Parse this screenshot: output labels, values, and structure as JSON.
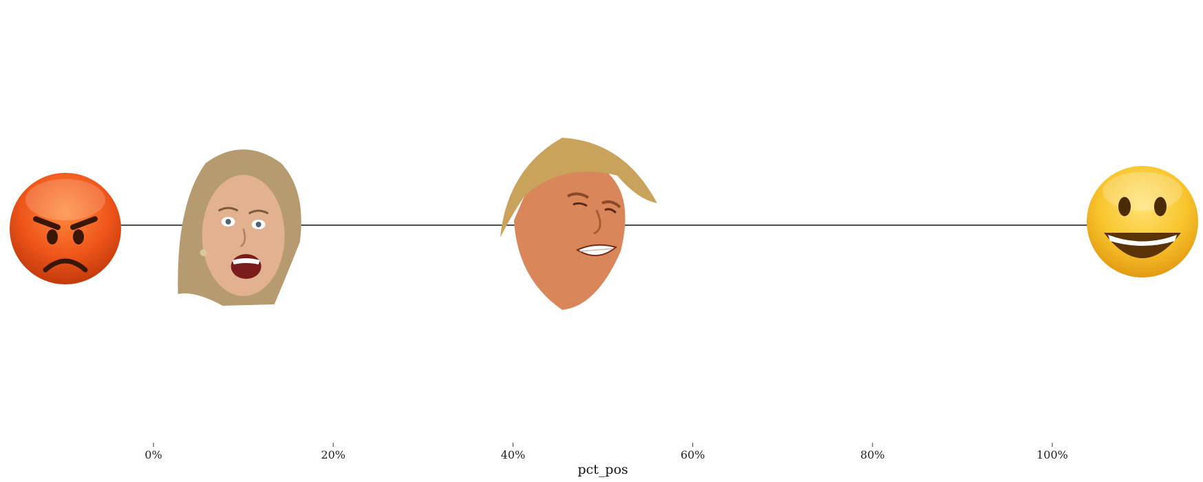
{
  "chart_data": {
    "type": "scatter",
    "title": "",
    "xlabel": "pct_pos",
    "ylabel": "",
    "xlim": [
      -0.16,
      1.16
    ],
    "x_ticks": [
      0,
      0.2,
      0.4,
      0.6,
      0.8,
      1.0
    ],
    "x_tick_labels": [
      "0%",
      "20%",
      "40%",
      "60%",
      "80%",
      "100%"
    ],
    "grid": false,
    "points": [
      {
        "x": 0.1,
        "image": "woman-face",
        "skin": "#e2b18f",
        "hair": "#b69a70"
      },
      {
        "x": 0.47,
        "image": "man-face",
        "skin": "#d9875a",
        "hair": "#c9a35c"
      }
    ],
    "endpoints": [
      {
        "side": "left",
        "icon": "angry-face-icon",
        "color": "#f05a18"
      },
      {
        "side": "right",
        "icon": "grinning-face-icon",
        "color": "#f7c12a"
      }
    ]
  }
}
